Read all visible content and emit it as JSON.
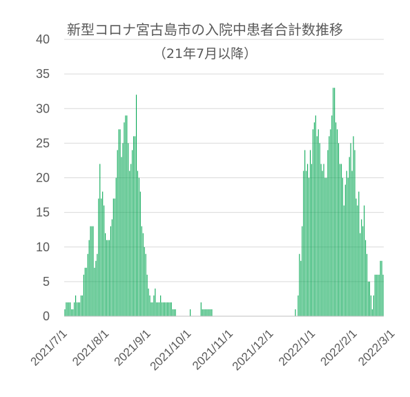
{
  "chart_data": {
    "type": "bar",
    "title": "新型コロナ宮古島市の入院中患者合計数推移",
    "subtitle": "（21年7月以降）",
    "xlabel": "",
    "ylabel": "",
    "x_start": "2021-07-01",
    "ylim": [
      0,
      40
    ],
    "yticks": [
      0,
      5,
      10,
      15,
      20,
      25,
      30,
      35,
      40
    ],
    "xticks": [
      "2021/7/1",
      "2021/8/1",
      "2021/9/1",
      "2021/10/1",
      "2021/11/1",
      "2021/12/1",
      "2022/1/1",
      "2022/2/1",
      "2022/3/1"
    ],
    "grid": true,
    "color": "#00a550",
    "values": [
      1,
      2,
      2,
      2,
      2,
      1,
      1,
      2,
      3,
      2,
      2,
      2,
      3,
      3,
      6,
      7,
      7,
      9,
      11,
      13,
      13,
      13,
      7,
      8,
      9,
      17,
      22,
      17,
      18,
      16,
      12,
      11,
      11,
      11,
      13,
      14,
      17,
      17,
      20,
      24,
      27,
      27,
      23,
      25,
      28,
      29,
      29,
      25,
      21,
      22,
      24,
      26,
      26,
      32,
      21,
      20,
      18,
      13,
      12,
      10,
      9,
      6,
      4,
      3,
      2,
      2,
      3,
      4,
      2,
      2,
      2,
      3,
      2,
      2,
      2,
      2,
      2,
      2,
      2,
      2,
      1,
      1,
      1,
      0,
      0,
      0,
      0,
      0,
      0,
      0,
      0,
      0,
      0,
      1,
      0,
      0,
      0,
      0,
      0,
      0,
      0,
      2,
      1,
      1,
      1,
      1,
      1,
      1,
      1,
      1,
      0,
      0,
      0,
      0,
      0,
      0,
      0,
      0,
      0,
      0,
      0,
      0,
      0,
      0,
      0,
      0,
      0,
      0,
      0,
      0,
      0,
      0,
      0,
      0,
      0,
      0,
      0,
      0,
      0,
      0,
      0,
      0,
      0,
      0,
      0,
      0,
      0,
      0,
      0,
      0,
      0,
      0,
      0,
      0,
      0,
      0,
      0,
      0,
      0,
      0,
      0,
      0,
      0,
      0,
      0,
      0,
      0,
      0,
      0,
      0,
      0,
      1,
      0,
      3,
      9,
      8,
      13,
      21,
      24,
      21,
      22,
      20,
      24,
      22,
      27,
      28,
      29,
      26,
      27,
      25,
      22,
      21,
      22,
      20,
      20,
      24,
      26,
      27,
      29,
      33,
      33,
      28,
      27,
      25,
      22,
      22,
      20,
      16,
      19,
      21,
      20,
      23,
      25,
      21,
      26,
      24,
      17,
      16,
      18,
      12,
      14,
      13,
      16,
      11,
      9,
      5,
      5,
      3,
      1,
      3,
      6,
      6,
      6,
      6,
      8,
      8,
      6
    ]
  }
}
